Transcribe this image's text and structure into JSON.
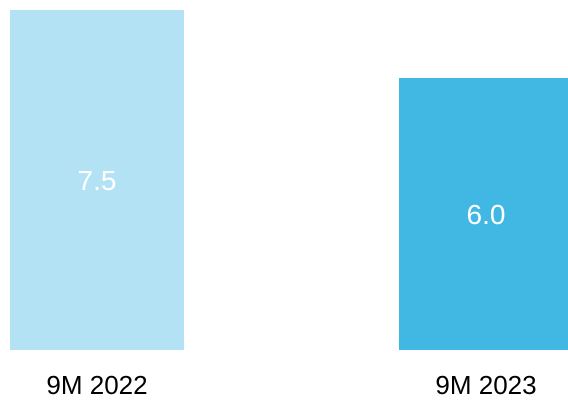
{
  "chart_data": {
    "type": "bar",
    "categories": [
      "9M 2022",
      "9M 2023"
    ],
    "values": [
      7.5,
      6.0
    ],
    "data_labels": [
      "7.5",
      "6.0"
    ],
    "colors": [
      "#b3e2f4",
      "#41b8e4"
    ],
    "label_color": "#ffffff",
    "ylim": [
      0,
      7.5
    ],
    "grid": false,
    "legend": "none"
  }
}
